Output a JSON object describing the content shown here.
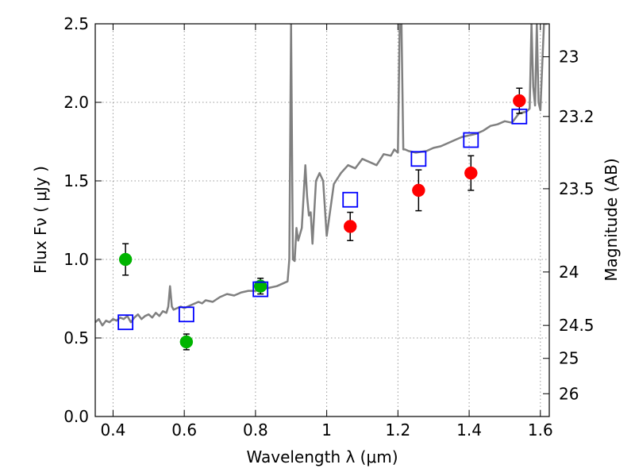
{
  "chart_data": {
    "type": "scatter",
    "title": "",
    "xlabel": "Wavelength  λ (μm)",
    "ylabel": "Flux  Fν  ( μJy )",
    "ylabel_right": "Magnitude (AB)",
    "xlim": [
      0.35,
      1.625
    ],
    "ylim": [
      0.0,
      2.5
    ],
    "grid": true,
    "x_ticks": [
      0.4,
      0.6,
      0.8,
      1.0,
      1.2,
      1.4,
      1.6
    ],
    "x_tick_labels": [
      "0.4",
      "0.6",
      "0.8",
      "1",
      "1.2",
      "1.4",
      "1.6"
    ],
    "y_ticks": [
      0.0,
      0.5,
      1.0,
      1.5,
      2.0,
      2.5
    ],
    "y_tick_labels": [
      "0.0",
      "0.5",
      "1.0",
      "1.5",
      "2.0",
      "2.5"
    ],
    "right_ticks": [
      {
        "flux": 2.29,
        "label": "23"
      },
      {
        "flux": 1.91,
        "label": "23.2"
      },
      {
        "flux": 1.45,
        "label": "23.5"
      },
      {
        "flux": 0.92,
        "label": "24"
      },
      {
        "flux": 0.58,
        "label": "24.5"
      },
      {
        "flux": 0.37,
        "label": "25"
      },
      {
        "flux": 0.145,
        "label": "26"
      }
    ],
    "colors": {
      "model": "#808080",
      "green": "#00b400",
      "red": "#ff0000",
      "box": "#0000ff",
      "grid": "#9a9a9a"
    },
    "series": [
      {
        "name": "Model spectrum",
        "kind": "line",
        "x": [
          0.35,
          0.36,
          0.37,
          0.38,
          0.39,
          0.4,
          0.41,
          0.42,
          0.43,
          0.44,
          0.45,
          0.46,
          0.47,
          0.48,
          0.49,
          0.5,
          0.51,
          0.52,
          0.53,
          0.54,
          0.55,
          0.555,
          0.56,
          0.565,
          0.57,
          0.58,
          0.59,
          0.6,
          0.62,
          0.64,
          0.65,
          0.66,
          0.68,
          0.7,
          0.72,
          0.74,
          0.76,
          0.78,
          0.8,
          0.82,
          0.84,
          0.86,
          0.87,
          0.88,
          0.89,
          0.895,
          0.9,
          0.905,
          0.91,
          0.915,
          0.92,
          0.93,
          0.94,
          0.945,
          0.95,
          0.955,
          0.96,
          0.97,
          0.98,
          0.99,
          1.0,
          1.02,
          1.04,
          1.06,
          1.08,
          1.1,
          1.12,
          1.14,
          1.16,
          1.18,
          1.19,
          1.2,
          1.205,
          1.21,
          1.215,
          1.22,
          1.23,
          1.25,
          1.28,
          1.3,
          1.32,
          1.34,
          1.36,
          1.38,
          1.4,
          1.42,
          1.44,
          1.46,
          1.48,
          1.5,
          1.52,
          1.54,
          1.56,
          1.57,
          1.575,
          1.58,
          1.585,
          1.59,
          1.595,
          1.6,
          1.61,
          1.62
        ],
        "y": [
          0.6,
          0.62,
          0.58,
          0.61,
          0.6,
          0.62,
          0.61,
          0.63,
          0.62,
          0.64,
          0.6,
          0.63,
          0.65,
          0.62,
          0.64,
          0.65,
          0.63,
          0.66,
          0.64,
          0.67,
          0.66,
          0.7,
          0.83,
          0.7,
          0.68,
          0.69,
          0.7,
          0.69,
          0.71,
          0.73,
          0.72,
          0.74,
          0.73,
          0.76,
          0.78,
          0.77,
          0.79,
          0.8,
          0.8,
          0.81,
          0.82,
          0.83,
          0.84,
          0.85,
          0.86,
          1.0,
          2.5,
          1.0,
          0.99,
          1.2,
          1.12,
          1.2,
          1.6,
          1.4,
          1.28,
          1.3,
          1.1,
          1.5,
          1.55,
          1.5,
          1.15,
          1.48,
          1.55,
          1.6,
          1.58,
          1.64,
          1.62,
          1.6,
          1.67,
          1.66,
          1.7,
          1.68,
          2.5,
          2.5,
          1.7,
          1.7,
          1.69,
          1.68,
          1.69,
          1.71,
          1.72,
          1.74,
          1.76,
          1.78,
          1.79,
          1.8,
          1.82,
          1.85,
          1.86,
          1.88,
          1.87,
          1.93,
          1.94,
          1.96,
          2.5,
          2.1,
          1.98,
          2.5,
          2.0,
          1.95,
          2.5,
          2.5
        ]
      },
      {
        "name": "Blue photometry (green)",
        "kind": "points",
        "marker": "circle",
        "points": [
          {
            "x": 0.435,
            "y": 1.0,
            "err": 0.1
          },
          {
            "x": 0.606,
            "y": 0.475,
            "err": 0.05
          },
          {
            "x": 0.814,
            "y": 0.83,
            "err": 0.05
          }
        ]
      },
      {
        "name": "NIR photometry (red)",
        "kind": "points",
        "marker": "circle",
        "points": [
          {
            "x": 1.066,
            "y": 1.21,
            "err": 0.09
          },
          {
            "x": 1.258,
            "y": 1.44,
            "err": 0.13
          },
          {
            "x": 1.405,
            "y": 1.55,
            "err": 0.11
          },
          {
            "x": 1.541,
            "y": 2.01,
            "err": 0.08
          }
        ]
      },
      {
        "name": "Model photometry",
        "kind": "points",
        "marker": "open-square",
        "points": [
          {
            "x": 0.435,
            "y": 0.6
          },
          {
            "x": 0.606,
            "y": 0.65
          },
          {
            "x": 0.814,
            "y": 0.81
          },
          {
            "x": 1.066,
            "y": 1.38
          },
          {
            "x": 1.258,
            "y": 1.64
          },
          {
            "x": 1.405,
            "y": 1.76
          },
          {
            "x": 1.541,
            "y": 1.91
          }
        ]
      }
    ]
  }
}
